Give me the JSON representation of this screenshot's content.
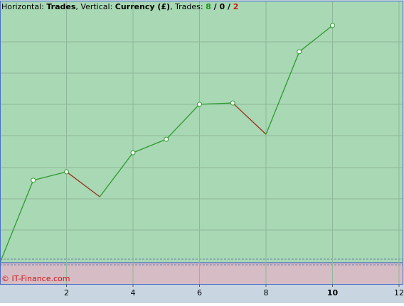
{
  "chart_data": {
    "type": "line",
    "header": {
      "h_label": "Horizontal: ",
      "h_name": "Trades",
      "v_label": ", Vertical: ",
      "v_name": "Currency (£)",
      "t_label": ", Trades: ",
      "wins": 8,
      "even": 0,
      "losses": 2,
      "sep": " / "
    },
    "watermark": "© IT-Finance.com",
    "x": [
      0,
      1,
      2,
      3,
      4,
      5,
      6,
      7,
      8,
      9,
      10
    ],
    "series": [
      {
        "values": [
          0,
          2.64,
          2.91,
          2.11,
          3.52,
          3.95,
          5.07,
          5.11,
          4.11,
          6.75,
          7.59
        ],
        "up_color": "#2e9a2e",
        "down_color": "#9a2e22"
      }
    ],
    "xlim": [
      0,
      12.15
    ],
    "xticks": [
      2,
      4,
      6,
      8,
      10,
      12
    ],
    "ylim": [
      -0.68,
      8.36
    ],
    "grid": true
  }
}
